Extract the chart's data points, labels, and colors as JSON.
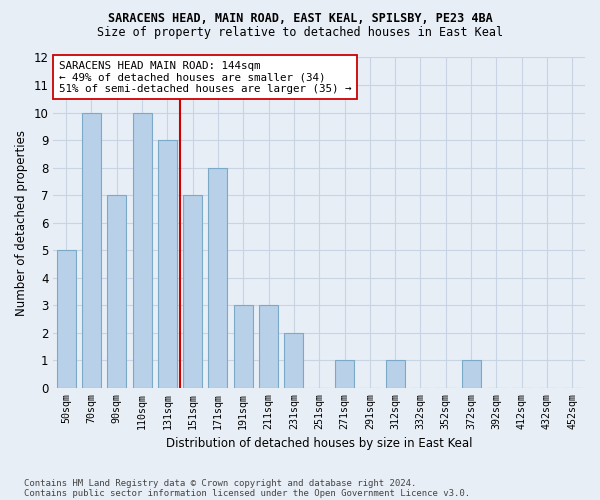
{
  "title": "SARACENS HEAD, MAIN ROAD, EAST KEAL, SPILSBY, PE23 4BA",
  "subtitle": "Size of property relative to detached houses in East Keal",
  "xlabel": "Distribution of detached houses by size in East Keal",
  "ylabel": "Number of detached properties",
  "categories": [
    "50sqm",
    "70sqm",
    "90sqm",
    "110sqm",
    "131sqm",
    "151sqm",
    "171sqm",
    "191sqm",
    "211sqm",
    "231sqm",
    "251sqm",
    "271sqm",
    "291sqm",
    "312sqm",
    "332sqm",
    "352sqm",
    "372sqm",
    "392sqm",
    "412sqm",
    "432sqm",
    "452sqm"
  ],
  "values": [
    5,
    10,
    7,
    10,
    9,
    7,
    8,
    3,
    3,
    2,
    0,
    1,
    0,
    1,
    0,
    0,
    1,
    0,
    0,
    0,
    0
  ],
  "bar_color": "#b8d0e8",
  "bar_edge_color": "#7baac8",
  "grid_color": "#c8d4e4",
  "background_color": "#e8eef6",
  "annotation_text": "SARACENS HEAD MAIN ROAD: 144sqm\n← 49% of detached houses are smaller (34)\n51% of semi-detached houses are larger (35) →",
  "annotation_box_color": "#ffffff",
  "annotation_box_edge": "#cc0000",
  "red_line_color": "#cc0000",
  "ylim": [
    0,
    12
  ],
  "yticks": [
    0,
    1,
    2,
    3,
    4,
    5,
    6,
    7,
    8,
    9,
    10,
    11,
    12
  ],
  "footer_line1": "Contains HM Land Registry data © Crown copyright and database right 2024.",
  "footer_line2": "Contains public sector information licensed under the Open Government Licence v3.0."
}
